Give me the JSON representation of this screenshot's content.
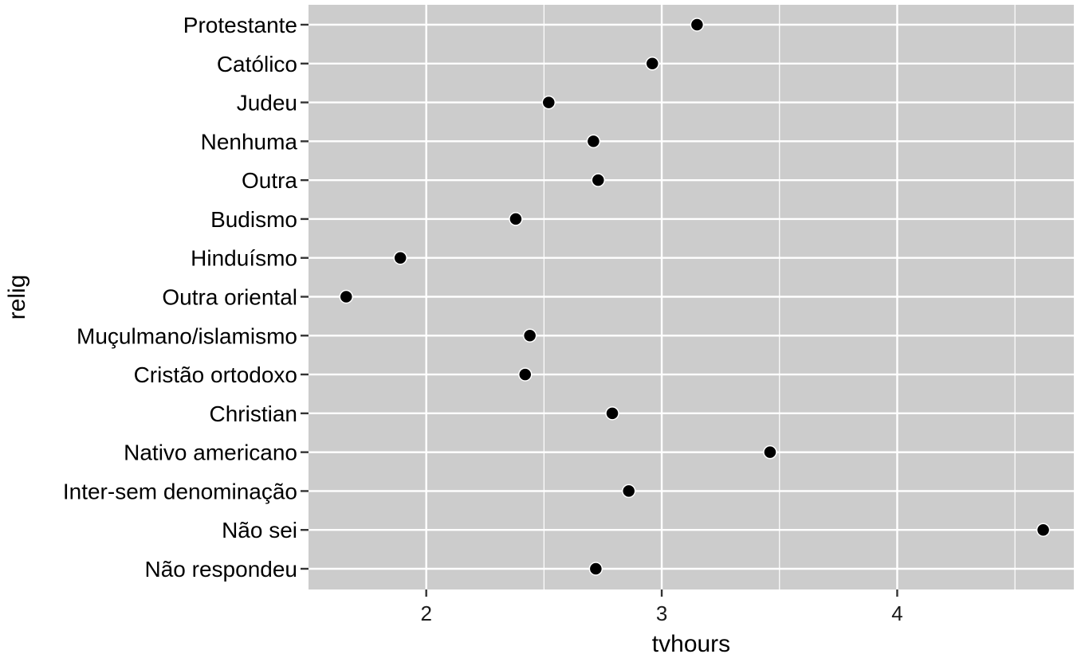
{
  "chart_data": {
    "type": "scatter",
    "title": "",
    "xlabel": "tvhours",
    "ylabel": "relig",
    "xlim": [
      1.5,
      4.75
    ],
    "x_ticks": [
      2,
      3,
      4
    ],
    "x_minor_ticks": [
      2.5,
      3.5,
      4.5
    ],
    "categories": [
      "Protestante",
      "Católico",
      "Judeu",
      "Nenhuma",
      "Outra",
      "Budismo",
      "Hinduísmo",
      "Outra oriental",
      "Muçulmano/islamismo",
      "Cristão ortodoxo",
      "Christian",
      "Nativo americano",
      "Inter-sem denominação",
      "Não sei",
      "Não respondeu"
    ],
    "values": [
      3.15,
      2.96,
      2.52,
      2.71,
      2.73,
      2.38,
      1.89,
      1.66,
      2.44,
      2.42,
      2.79,
      3.46,
      2.86,
      4.62,
      2.72
    ],
    "grid": true,
    "panel_background": "#cccccc",
    "grid_color": "#ffffff",
    "point_color": "#000000"
  }
}
